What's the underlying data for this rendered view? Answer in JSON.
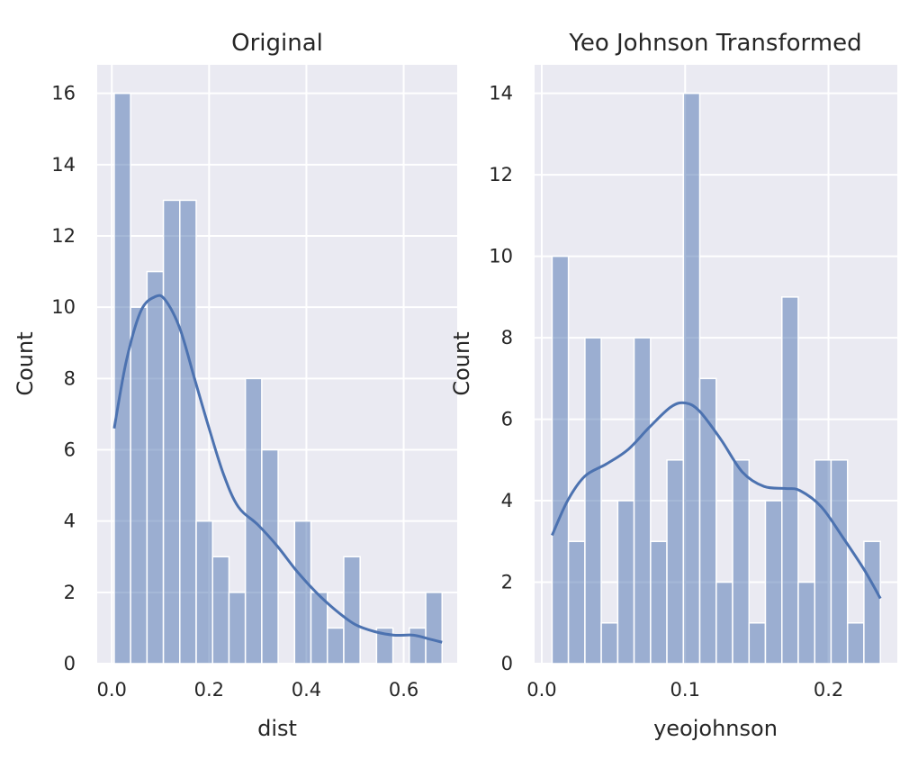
{
  "chart_data": [
    {
      "type": "bar",
      "title": "Original",
      "xlabel": "dist",
      "ylabel": "Count",
      "xlim": [
        -0.03,
        0.71
      ],
      "ylim": [
        0,
        16.8
      ],
      "xticks": [
        "0.0",
        "0.2",
        "0.4",
        "0.6"
      ],
      "xtick_values": [
        0,
        0.2,
        0.4,
        0.6
      ],
      "yticks": [
        "0",
        "2",
        "4",
        "6",
        "8",
        "10",
        "12",
        "14",
        "16"
      ],
      "yticks_values": [
        0,
        2,
        4,
        6,
        8,
        10,
        12,
        14,
        16
      ],
      "grid": true,
      "bin_edges": [
        0.005,
        0.0387,
        0.0724,
        0.1061,
        0.1398,
        0.1735,
        0.2072,
        0.2409,
        0.2746,
        0.3083,
        0.342,
        0.3757,
        0.4094,
        0.4431,
        0.4768,
        0.5105,
        0.5442,
        0.5779,
        0.6116,
        0.6453,
        0.679
      ],
      "counts": [
        16,
        10,
        11,
        13,
        13,
        4,
        3,
        2,
        8,
        6,
        0,
        4,
        2,
        1,
        3,
        0,
        1,
        0,
        1,
        2
      ],
      "kde": {
        "x": [
          0.005,
          0.03,
          0.06,
          0.09,
          0.11,
          0.14,
          0.17,
          0.2,
          0.23,
          0.26,
          0.3,
          0.34,
          0.38,
          0.42,
          0.46,
          0.5,
          0.54,
          0.58,
          0.62,
          0.65,
          0.679
        ],
        "y": [
          6.6,
          8.5,
          9.9,
          10.3,
          10.2,
          9.4,
          8.0,
          6.6,
          5.3,
          4.4,
          3.9,
          3.3,
          2.6,
          2.0,
          1.5,
          1.1,
          0.9,
          0.8,
          0.8,
          0.7,
          0.6
        ]
      },
      "bar_color": "#4c72b0",
      "bar_alpha": 0.5,
      "line_color": "#4c72b0",
      "background": "#eaeaf2"
    },
    {
      "type": "bar",
      "title": "Yeo Johnson Transformed",
      "xlabel": "yeojohnson",
      "ylabel": "Count",
      "xlim": [
        -0.005,
        0.248
      ],
      "ylim": [
        0,
        14.7
      ],
      "xticks": [
        "0.0",
        "0.1",
        "0.2"
      ],
      "xtick_values": [
        0,
        0.1,
        0.2
      ],
      "yticks": [
        "0",
        "2",
        "4",
        "6",
        "8",
        "10",
        "12",
        "14"
      ],
      "yticks_values": [
        0,
        2,
        4,
        6,
        8,
        10,
        12,
        14
      ],
      "grid": true,
      "bin_edges": [
        0.0072,
        0.0186,
        0.0301,
        0.0415,
        0.053,
        0.0644,
        0.0759,
        0.0873,
        0.0988,
        0.1102,
        0.1217,
        0.1331,
        0.1446,
        0.156,
        0.1675,
        0.1789,
        0.1904,
        0.2018,
        0.2133,
        0.2247,
        0.2362
      ],
      "counts": [
        10,
        3,
        8,
        1,
        4,
        8,
        3,
        5,
        14,
        7,
        2,
        5,
        1,
        4,
        9,
        2,
        5,
        5,
        1,
        3
      ],
      "kde": {
        "x": [
          0.0072,
          0.018,
          0.03,
          0.045,
          0.06,
          0.075,
          0.09,
          0.1,
          0.11,
          0.125,
          0.14,
          0.155,
          0.17,
          0.18,
          0.195,
          0.21,
          0.225,
          0.2362
        ],
        "y": [
          3.15,
          4.0,
          4.6,
          4.9,
          5.25,
          5.8,
          6.3,
          6.4,
          6.2,
          5.5,
          4.7,
          4.35,
          4.3,
          4.25,
          3.85,
          3.1,
          2.3,
          1.6
        ]
      },
      "bar_color": "#4c72b0",
      "bar_alpha": 0.5,
      "line_color": "#4c72b0",
      "background": "#eaeaf2"
    }
  ]
}
